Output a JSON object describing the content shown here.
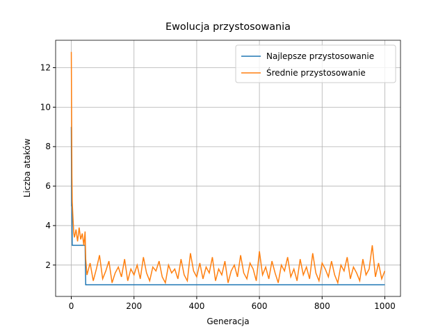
{
  "chart_data": {
    "type": "line",
    "title": "Ewolucja przystosowania",
    "xlabel": "Generacja",
    "ylabel": "Liczba ataków",
    "x": [
      0,
      1,
      2,
      3,
      5,
      8,
      10,
      15,
      20,
      25,
      30,
      35,
      40,
      44,
      46,
      50,
      60,
      70,
      80,
      90,
      100,
      110,
      120,
      130,
      140,
      150,
      160,
      170,
      180,
      190,
      200,
      210,
      220,
      230,
      240,
      250,
      260,
      270,
      280,
      290,
      300,
      310,
      320,
      330,
      340,
      350,
      360,
      370,
      380,
      390,
      400,
      410,
      420,
      430,
      440,
      450,
      460,
      470,
      480,
      490,
      500,
      510,
      520,
      530,
      540,
      550,
      560,
      570,
      580,
      590,
      600,
      610,
      620,
      630,
      640,
      650,
      660,
      670,
      680,
      690,
      700,
      710,
      720,
      730,
      740,
      750,
      760,
      770,
      780,
      790,
      800,
      810,
      820,
      830,
      840,
      850,
      860,
      870,
      880,
      890,
      900,
      910,
      920,
      930,
      940,
      950,
      960,
      970,
      980,
      990,
      1000
    ],
    "series": [
      {
        "name": "Najlepsze przystosowanie",
        "color": "#1f77b4",
        "values": [
          9,
          5,
          5,
          3,
          3,
          3,
          3,
          3,
          3,
          3,
          3,
          3,
          3,
          3,
          1,
          1,
          1,
          1,
          1,
          1,
          1,
          1,
          1,
          1,
          1,
          1,
          1,
          1,
          1,
          1,
          1,
          1,
          1,
          1,
          1,
          1,
          1,
          1,
          1,
          1,
          1,
          1,
          1,
          1,
          1,
          1,
          1,
          1,
          1,
          1,
          1,
          1,
          1,
          1,
          1,
          1,
          1,
          1,
          1,
          1,
          1,
          1,
          1,
          1,
          1,
          1,
          1,
          1,
          1,
          1,
          1,
          1,
          1,
          1,
          1,
          1,
          1,
          1,
          1,
          1,
          1,
          1,
          1,
          1,
          1,
          1,
          1,
          1,
          1,
          1,
          1,
          1,
          1,
          1,
          1,
          1,
          1,
          1,
          1,
          1,
          1,
          1,
          1,
          1,
          1,
          1,
          1,
          1,
          1,
          1,
          1
        ]
      },
      {
        "name": "Średnie przystosowanie",
        "color": "#ff7f0e",
        "values": [
          12.8,
          9.5,
          6.5,
          5.2,
          4.5,
          3.6,
          3.4,
          3.8,
          3.2,
          3.9,
          3.3,
          3.6,
          3.0,
          3.7,
          2.3,
          1.5,
          2.1,
          1.2,
          1.8,
          2.5,
          1.3,
          1.7,
          2.2,
          1.1,
          1.6,
          1.9,
          1.4,
          2.3,
          1.2,
          1.8,
          1.5,
          2.0,
          1.3,
          2.4,
          1.6,
          1.2,
          1.9,
          1.7,
          2.2,
          1.4,
          1.1,
          2.0,
          1.6,
          1.8,
          1.3,
          2.3,
          1.5,
          1.2,
          2.6,
          1.7,
          1.4,
          2.1,
          1.3,
          1.9,
          1.6,
          2.4,
          1.2,
          1.8,
          1.5,
          2.2,
          1.1,
          1.7,
          2.0,
          1.4,
          2.5,
          1.6,
          1.3,
          2.1,
          1.8,
          1.2,
          2.7,
          1.5,
          1.9,
          1.3,
          2.2,
          1.6,
          1.1,
          2.0,
          1.7,
          2.4,
          1.4,
          1.8,
          1.2,
          2.3,
          1.5,
          1.9,
          1.3,
          2.6,
          1.6,
          1.2,
          2.1,
          1.8,
          1.4,
          2.2,
          1.5,
          1.1,
          2.0,
          1.7,
          2.4,
          1.3,
          1.9,
          1.6,
          1.2,
          2.3,
          1.5,
          1.8,
          3.0,
          1.4,
          2.1,
          1.3,
          1.7
        ]
      }
    ],
    "xlim": [
      -50,
      1050
    ],
    "ylim": [
      0.41,
      13.39
    ],
    "xticks": [
      0,
      200,
      400,
      600,
      800,
      1000
    ],
    "yticks": [
      2,
      4,
      6,
      8,
      10,
      12
    ],
    "grid": true,
    "legend": "upper right"
  }
}
